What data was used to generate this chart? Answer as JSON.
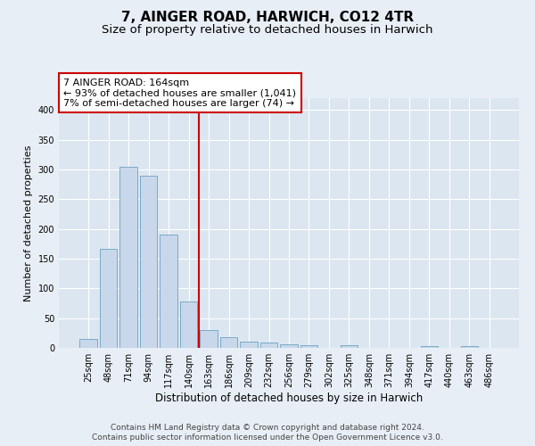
{
  "title": "7, AINGER ROAD, HARWICH, CO12 4TR",
  "subtitle": "Size of property relative to detached houses in Harwich",
  "xlabel": "Distribution of detached houses by size in Harwich",
  "ylabel": "Number of detached properties",
  "categories": [
    "25sqm",
    "48sqm",
    "71sqm",
    "94sqm",
    "117sqm",
    "140sqm",
    "163sqm",
    "186sqm",
    "209sqm",
    "232sqm",
    "256sqm",
    "279sqm",
    "302sqm",
    "325sqm",
    "348sqm",
    "371sqm",
    "394sqm",
    "417sqm",
    "440sqm",
    "463sqm",
    "486sqm"
  ],
  "values": [
    15,
    167,
    305,
    290,
    190,
    78,
    30,
    18,
    10,
    9,
    6,
    5,
    0,
    5,
    0,
    0,
    0,
    3,
    0,
    3,
    0
  ],
  "bar_color": "#c8d8ea",
  "bar_edge_color": "#7aaac8",
  "vline_x": 5.5,
  "vline_color": "#cc0000",
  "annotation_line1": "7 AINGER ROAD: 164sqm",
  "annotation_line2": "← 93% of detached houses are smaller (1,041)",
  "annotation_line3": "7% of semi-detached houses are larger (74) →",
  "annotation_box_color": "#ffffff",
  "annotation_box_edge_color": "#cc0000",
  "ylim": [
    0,
    420
  ],
  "yticks": [
    0,
    50,
    100,
    150,
    200,
    250,
    300,
    350,
    400
  ],
  "background_color": "#e8eef5",
  "plot_background_color": "#dce6f0",
  "grid_color": "#ffffff",
  "footer_line1": "Contains HM Land Registry data © Crown copyright and database right 2024.",
  "footer_line2": "Contains public sector information licensed under the Open Government Licence v3.0.",
  "title_fontsize": 11,
  "subtitle_fontsize": 9.5,
  "xlabel_fontsize": 8.5,
  "ylabel_fontsize": 8,
  "tick_fontsize": 7,
  "annotation_fontsize": 8,
  "footer_fontsize": 6.5
}
